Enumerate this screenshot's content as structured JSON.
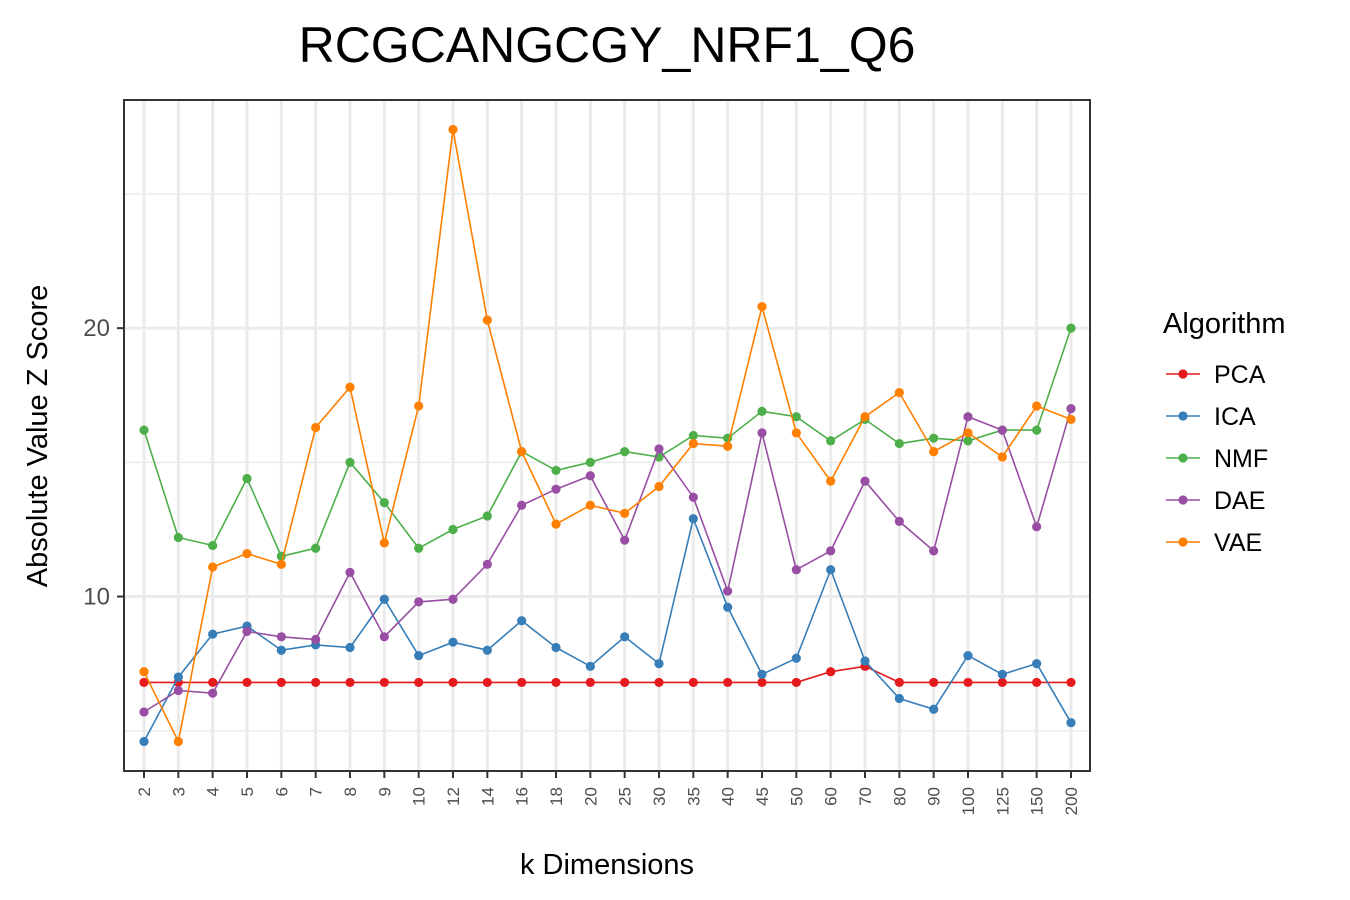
{
  "chart_data": {
    "type": "line",
    "title": "RCGCANGCGY_NRF1_Q6",
    "xlabel": "k Dimensions",
    "ylabel": "Absolute Value Z Score",
    "categories": [
      "2",
      "3",
      "4",
      "5",
      "6",
      "7",
      "8",
      "9",
      "10",
      "12",
      "14",
      "16",
      "18",
      "20",
      "25",
      "30",
      "35",
      "40",
      "45",
      "50",
      "60",
      "70",
      "80",
      "90",
      "100",
      "125",
      "150",
      "200"
    ],
    "yticks": [
      10,
      20
    ],
    "ylim": [
      3.5,
      28.5
    ],
    "grid": true,
    "legend_title": "Algorithm",
    "legend_position": "right",
    "series": [
      {
        "name": "PCA",
        "color": "#e41a1c",
        "values": [
          6.8,
          6.8,
          6.8,
          6.8,
          6.8,
          6.8,
          6.8,
          6.8,
          6.8,
          6.8,
          6.8,
          6.8,
          6.8,
          6.8,
          6.8,
          6.8,
          6.8,
          6.8,
          6.8,
          6.8,
          7.2,
          7.4,
          6.8,
          6.8,
          6.8,
          6.8,
          6.8,
          6.8
        ]
      },
      {
        "name": "ICA",
        "color": "#377eb8",
        "values": [
          4.6,
          7.0,
          8.6,
          8.9,
          8.0,
          8.2,
          8.1,
          9.9,
          7.8,
          8.3,
          8.0,
          9.1,
          8.1,
          7.4,
          8.5,
          7.5,
          12.9,
          9.6,
          7.1,
          7.7,
          11.0,
          7.6,
          6.2,
          5.8,
          7.8,
          7.1,
          7.5,
          5.3
        ]
      },
      {
        "name": "NMF",
        "color": "#4daf4a",
        "values": [
          16.2,
          12.2,
          11.9,
          14.4,
          11.5,
          11.8,
          15.0,
          13.5,
          11.8,
          12.5,
          13.0,
          15.4,
          14.7,
          15.0,
          15.4,
          15.2,
          16.0,
          15.9,
          16.9,
          16.7,
          15.8,
          16.6,
          15.7,
          15.9,
          15.8,
          16.2,
          16.2,
          20.0
        ]
      },
      {
        "name": "DAE",
        "color": "#984ea3",
        "values": [
          5.7,
          6.5,
          6.4,
          8.7,
          8.5,
          8.4,
          10.9,
          8.5,
          9.8,
          9.9,
          11.2,
          13.4,
          14.0,
          14.5,
          12.1,
          15.5,
          13.7,
          10.2,
          16.1,
          11.0,
          11.7,
          14.3,
          12.8,
          11.7,
          16.7,
          16.2,
          12.6,
          17.0
        ]
      },
      {
        "name": "VAE",
        "color": "#ff7f00",
        "values": [
          7.2,
          4.6,
          11.1,
          11.6,
          11.2,
          16.3,
          17.8,
          12.0,
          17.1,
          27.4,
          20.3,
          15.4,
          12.7,
          13.4,
          13.1,
          14.1,
          15.7,
          15.6,
          20.8,
          16.1,
          14.3,
          16.7,
          17.6,
          15.4,
          16.1,
          15.2,
          17.1,
          16.6
        ]
      }
    ]
  }
}
